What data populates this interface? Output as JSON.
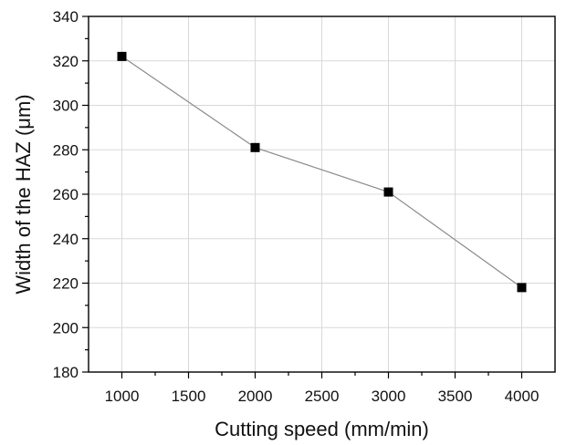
{
  "chart_data": {
    "type": "line",
    "title": "",
    "xlabel": "Cutting speed (mm/min)",
    "ylabel": "Width of the HAZ (μm)",
    "xlim": [
      750,
      4250
    ],
    "ylim": [
      180,
      340
    ],
    "xticks": [
      1000,
      1500,
      2000,
      2500,
      3000,
      3500,
      4000
    ],
    "yticks": [
      180,
      200,
      220,
      240,
      260,
      280,
      300,
      320,
      340
    ],
    "xtick_labels": [
      "1000",
      "1500",
      "2000",
      "2500",
      "3000",
      "3500",
      "4000"
    ],
    "ytick_labels": [
      "180",
      "200",
      "220",
      "240",
      "260",
      "280",
      "300",
      "320",
      "340"
    ],
    "grid": true,
    "marker": "square",
    "series": [
      {
        "x": [
          1000,
          2000,
          3000,
          4000
        ],
        "values": [
          322,
          281,
          261,
          218
        ],
        "line_color": "#8a8a8a",
        "marker_color": "#000000"
      }
    ]
  }
}
